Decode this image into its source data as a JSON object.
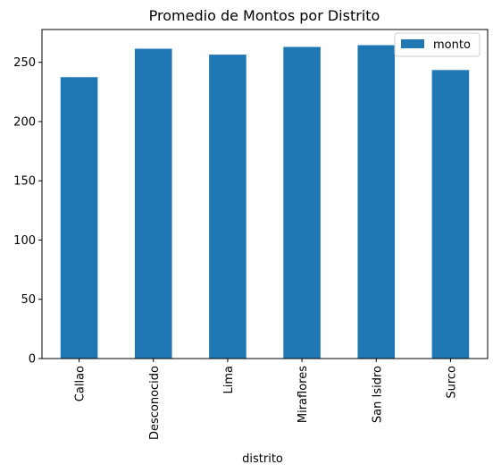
{
  "chart_data": {
    "type": "bar",
    "title": "Promedio de Montos por Distrito",
    "xlabel": "distrito",
    "ylabel": "",
    "categories": [
      "Callao",
      "Desconocido",
      "Lima",
      "Miraflores",
      "San Isidro",
      "Surco"
    ],
    "series": [
      {
        "name": "monto",
        "values": [
          237.5,
          261.5,
          256.5,
          263.0,
          264.5,
          243.5
        ],
        "color": "#1f77b4"
      }
    ],
    "yticks": [
      0,
      50,
      100,
      150,
      200,
      250
    ],
    "ylim": [
      0,
      277.7
    ],
    "grid": false,
    "legend_position": "top-right"
  }
}
